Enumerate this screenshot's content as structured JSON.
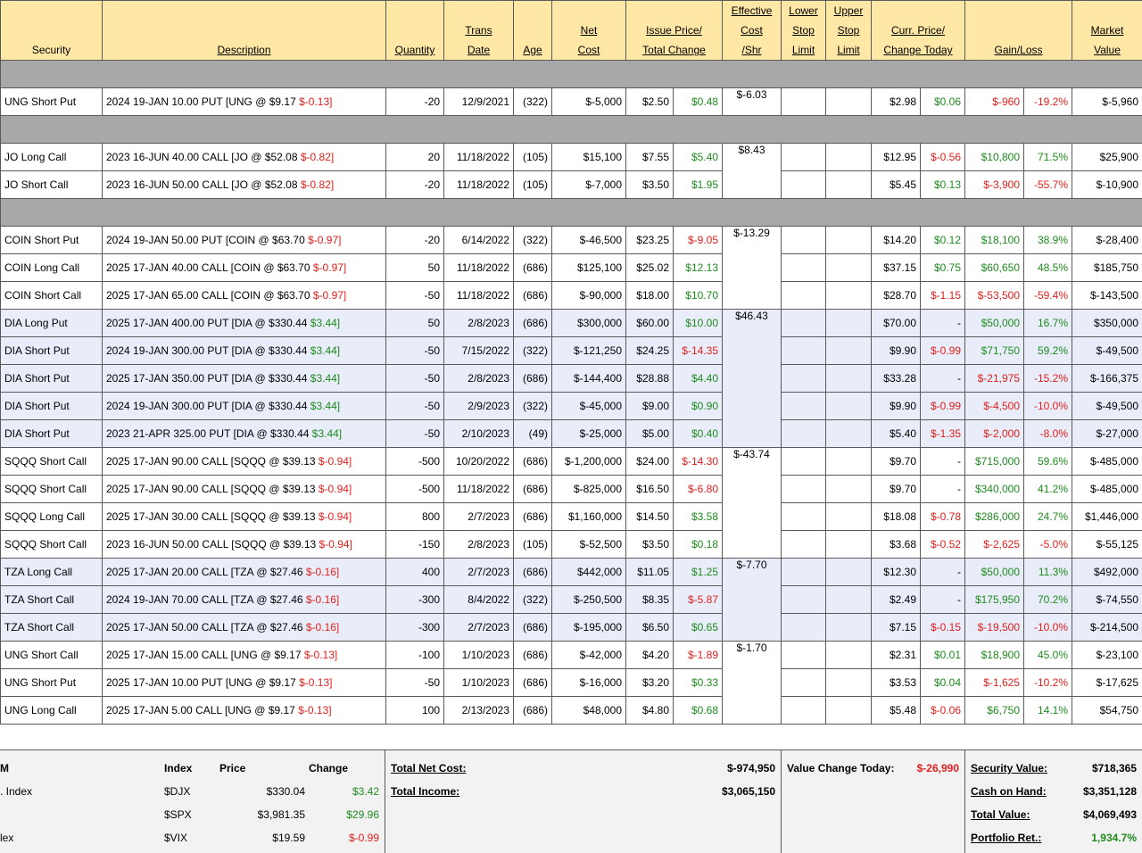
{
  "header": {
    "security": "Security",
    "description": "Description",
    "quantity": "Quantity",
    "trans_date_1": "Trans",
    "trans_date_2": "Date",
    "age": "Age",
    "net_cost_1": "Net",
    "net_cost_2": "Cost",
    "issue_price_1": "Issue Price/",
    "issue_price_2": "Total Change",
    "eff_cost_1": "Effective",
    "eff_cost_2": "Cost",
    "eff_cost_3": "/Shr",
    "lower_stop_1": "Lower",
    "lower_stop_2": "Stop",
    "lower_stop_3": "Limit",
    "upper_stop_1": "Upper",
    "upper_stop_2": "Stop",
    "upper_stop_3": "Limit",
    "curr_price_1": "Curr. Price/",
    "curr_price_2": "Change Today",
    "gain_loss": "Gain/Loss",
    "market_value_1": "Market",
    "market_value_2": "Value"
  },
  "rows": [
    {
      "sec": "UNG Short Put",
      "desc": "2024 19-JAN 10.00 PUT [UNG @ $9.17",
      "desc_chg": "$-0.13]",
      "desc_chg_neg": true,
      "qty": "-20",
      "date": "12/9/2021",
      "age": "(322)",
      "net": "$-5,000",
      "issue": "$2.50",
      "tchg": "$0.48",
      "tchg_neg": false,
      "ecost": "$-6.03",
      "curr": "$2.98",
      "today": "$0.06",
      "today_neg": false,
      "gain": "$-960",
      "gain_neg": true,
      "pct": "-19.2%",
      "pct_neg": true,
      "mv": "$-5,960",
      "blue": false
    },
    {
      "sec": "JO Long Call",
      "desc": "2023 16-JUN 40.00 CALL [JO @ $52.08",
      "desc_chg": "$-0.82]",
      "desc_chg_neg": true,
      "qty": "20",
      "date": "11/18/2022",
      "age": "(105)",
      "net": "$15,100",
      "issue": "$7.55",
      "tchg": "$5.40",
      "tchg_neg": false,
      "ecost": "$8.43",
      "curr": "$12.95",
      "today": "$-0.56",
      "today_neg": true,
      "gain": "$10,800",
      "gain_neg": false,
      "pct": "71.5%",
      "pct_neg": false,
      "mv": "$25,900",
      "blue": false
    },
    {
      "sec": "JO Short Call",
      "desc": "2023 16-JUN 50.00 CALL [JO @ $52.08",
      "desc_chg": "$-0.82]",
      "desc_chg_neg": true,
      "qty": "-20",
      "date": "11/18/2022",
      "age": "(105)",
      "net": "$-7,000",
      "issue": "$3.50",
      "tchg": "$1.95",
      "tchg_neg": false,
      "ecost": "",
      "curr": "$5.45",
      "today": "$0.13",
      "today_neg": false,
      "gain": "$-3,900",
      "gain_neg": true,
      "pct": "-55.7%",
      "pct_neg": true,
      "mv": "$-10,900",
      "blue": false
    },
    {
      "sec": "COIN Short Put",
      "desc": "2024 19-JAN 50.00 PUT [COIN @ $63.70",
      "desc_chg": "$-0.97]",
      "desc_chg_neg": true,
      "qty": "-20",
      "date": "6/14/2022",
      "age": "(322)",
      "net": "$-46,500",
      "issue": "$23.25",
      "tchg": "$-9.05",
      "tchg_neg": true,
      "ecost": "$-13.29",
      "curr": "$14.20",
      "today": "$0.12",
      "today_neg": false,
      "gain": "$18,100",
      "gain_neg": false,
      "pct": "38.9%",
      "pct_neg": false,
      "mv": "$-28,400",
      "blue": false
    },
    {
      "sec": "COIN Long Call",
      "desc": "2025 17-JAN 40.00 CALL [COIN @ $63.70",
      "desc_chg": "$-0.97]",
      "desc_chg_neg": true,
      "qty": "50",
      "date": "11/18/2022",
      "age": "(686)",
      "net": "$125,100",
      "issue": "$25.02",
      "tchg": "$12.13",
      "tchg_neg": false,
      "ecost": "",
      "curr": "$37.15",
      "today": "$0.75",
      "today_neg": false,
      "gain": "$60,650",
      "gain_neg": false,
      "pct": "48.5%",
      "pct_neg": false,
      "mv": "$185,750",
      "blue": false
    },
    {
      "sec": "COIN Short Call",
      "desc": "2025 17-JAN 65.00 CALL [COIN @ $63.70",
      "desc_chg": "$-0.97]",
      "desc_chg_neg": true,
      "qty": "-50",
      "date": "11/18/2022",
      "age": "(686)",
      "net": "$-90,000",
      "issue": "$18.00",
      "tchg": "$10.70",
      "tchg_neg": false,
      "ecost": "",
      "curr": "$28.70",
      "today": "$-1.15",
      "today_neg": true,
      "gain": "$-53,500",
      "gain_neg": true,
      "pct": "-59.4%",
      "pct_neg": true,
      "mv": "$-143,500",
      "blue": false
    },
    {
      "sec": "DIA Long Put",
      "desc": "2025 17-JAN 400.00 PUT [DIA @ $330.44",
      "desc_chg": "$3.44]",
      "desc_chg_neg": false,
      "qty": "50",
      "date": "2/8/2023",
      "age": "(686)",
      "net": "$300,000",
      "issue": "$60.00",
      "tchg": "$10.00",
      "tchg_neg": false,
      "ecost": "$46.43",
      "curr": "$70.00",
      "today": "-",
      "today_neg": false,
      "gain": "$50,000",
      "gain_neg": false,
      "pct": "16.7%",
      "pct_neg": false,
      "mv": "$350,000",
      "blue": true
    },
    {
      "sec": "DIA Short Put",
      "desc": "2024 19-JAN 300.00 PUT [DIA @ $330.44",
      "desc_chg": "$3.44]",
      "desc_chg_neg": false,
      "qty": "-50",
      "date": "7/15/2022",
      "age": "(322)",
      "net": "$-121,250",
      "issue": "$24.25",
      "tchg": "$-14.35",
      "tchg_neg": true,
      "ecost": "",
      "curr": "$9.90",
      "today": "$-0.99",
      "today_neg": true,
      "gain": "$71,750",
      "gain_neg": false,
      "pct": "59.2%",
      "pct_neg": false,
      "mv": "$-49,500",
      "blue": true
    },
    {
      "sec": "DIA Short Put",
      "desc": "2025 17-JAN 350.00 PUT [DIA @ $330.44",
      "desc_chg": "$3.44]",
      "desc_chg_neg": false,
      "qty": "-50",
      "date": "2/8/2023",
      "age": "(686)",
      "net": "$-144,400",
      "issue": "$28.88",
      "tchg": "$4.40",
      "tchg_neg": false,
      "ecost": "",
      "curr": "$33.28",
      "today": "-",
      "today_neg": false,
      "gain": "$-21,975",
      "gain_neg": true,
      "pct": "-15.2%",
      "pct_neg": true,
      "mv": "$-166,375",
      "blue": true
    },
    {
      "sec": "DIA Short Put",
      "desc": "2024 19-JAN 300.00 PUT [DIA @ $330.44",
      "desc_chg": "$3.44]",
      "desc_chg_neg": false,
      "qty": "-50",
      "date": "2/9/2023",
      "age": "(322)",
      "net": "$-45,000",
      "issue": "$9.00",
      "tchg": "$0.90",
      "tchg_neg": false,
      "ecost": "",
      "curr": "$9.90",
      "today": "$-0.99",
      "today_neg": true,
      "gain": "$-4,500",
      "gain_neg": true,
      "pct": "-10.0%",
      "pct_neg": true,
      "mv": "$-49,500",
      "blue": true
    },
    {
      "sec": "DIA Short Put",
      "desc": "2023 21-APR 325.00 PUT [DIA @ $330.44",
      "desc_chg": "$3.44]",
      "desc_chg_neg": false,
      "qty": "-50",
      "date": "2/10/2023",
      "age": "(49)",
      "net": "$-25,000",
      "issue": "$5.00",
      "tchg": "$0.40",
      "tchg_neg": false,
      "ecost": "",
      "curr": "$5.40",
      "today": "$-1.35",
      "today_neg": true,
      "gain": "$-2,000",
      "gain_neg": true,
      "pct": "-8.0%",
      "pct_neg": true,
      "mv": "$-27,000",
      "blue": true
    },
    {
      "sec": "SQQQ Short Call",
      "desc": "2025 17-JAN 90.00 CALL [SQQQ @ $39.13",
      "desc_chg": "$-0.94]",
      "desc_chg_neg": true,
      "qty": "-500",
      "date": "10/20/2022",
      "age": "(686)",
      "net": "$-1,200,000",
      "issue": "$24.00",
      "tchg": "$-14.30",
      "tchg_neg": true,
      "ecost": "$-43.74",
      "curr": "$9.70",
      "today": "-",
      "today_neg": false,
      "gain": "$715,000",
      "gain_neg": false,
      "pct": "59.6%",
      "pct_neg": false,
      "mv": "$-485,000",
      "blue": false
    },
    {
      "sec": "SQQQ Short Call",
      "desc": "2025 17-JAN 90.00 CALL [SQQQ @ $39.13",
      "desc_chg": "$-0.94]",
      "desc_chg_neg": true,
      "qty": "-500",
      "date": "11/18/2022",
      "age": "(686)",
      "net": "$-825,000",
      "issue": "$16.50",
      "tchg": "$-6.80",
      "tchg_neg": true,
      "ecost": "",
      "curr": "$9.70",
      "today": "-",
      "today_neg": false,
      "gain": "$340,000",
      "gain_neg": false,
      "pct": "41.2%",
      "pct_neg": false,
      "mv": "$-485,000",
      "blue": false
    },
    {
      "sec": "SQQQ Long Call",
      "desc": "2025 17-JAN 30.00 CALL [SQQQ @ $39.13",
      "desc_chg": "$-0.94]",
      "desc_chg_neg": true,
      "qty": "800",
      "date": "2/7/2023",
      "age": "(686)",
      "net": "$1,160,000",
      "issue": "$14.50",
      "tchg": "$3.58",
      "tchg_neg": false,
      "ecost": "",
      "curr": "$18.08",
      "today": "$-0.78",
      "today_neg": true,
      "gain": "$286,000",
      "gain_neg": false,
      "pct": "24.7%",
      "pct_neg": false,
      "mv": "$1,446,000",
      "blue": false
    },
    {
      "sec": "SQQQ Short Call",
      "desc": "2023 16-JUN 50.00 CALL [SQQQ @ $39.13",
      "desc_chg": "$-0.94]",
      "desc_chg_neg": true,
      "qty": "-150",
      "date": "2/8/2023",
      "age": "(105)",
      "net": "$-52,500",
      "issue": "$3.50",
      "tchg": "$0.18",
      "tchg_neg": false,
      "ecost": "",
      "curr": "$3.68",
      "today": "$-0.52",
      "today_neg": true,
      "gain": "$-2,625",
      "gain_neg": true,
      "pct": "-5.0%",
      "pct_neg": true,
      "mv": "$-55,125",
      "blue": false
    },
    {
      "sec": "TZA Long Call",
      "desc": "2025 17-JAN 20.00 CALL [TZA @ $27.46",
      "desc_chg": "$-0.16]",
      "desc_chg_neg": true,
      "qty": "400",
      "date": "2/7/2023",
      "age": "(686)",
      "net": "$442,000",
      "issue": "$11.05",
      "tchg": "$1.25",
      "tchg_neg": false,
      "ecost": "$-7.70",
      "curr": "$12.30",
      "today": "-",
      "today_neg": false,
      "gain": "$50,000",
      "gain_neg": false,
      "pct": "11.3%",
      "pct_neg": false,
      "mv": "$492,000",
      "blue": true
    },
    {
      "sec": "TZA Short Call",
      "desc": "2024 19-JAN 70.00 CALL [TZA @ $27.46",
      "desc_chg": "$-0.16]",
      "desc_chg_neg": true,
      "qty": "-300",
      "date": "8/4/2022",
      "age": "(322)",
      "net": "$-250,500",
      "issue": "$8.35",
      "tchg": "$-5.87",
      "tchg_neg": true,
      "ecost": "",
      "curr": "$2.49",
      "today": "-",
      "today_neg": false,
      "gain": "$175,950",
      "gain_neg": false,
      "pct": "70.2%",
      "pct_neg": false,
      "mv": "$-74,550",
      "blue": true
    },
    {
      "sec": "TZA Short Call",
      "desc": "2025 17-JAN 50.00 CALL [TZA @ $27.46",
      "desc_chg": "$-0.16]",
      "desc_chg_neg": true,
      "qty": "-300",
      "date": "2/7/2023",
      "age": "(686)",
      "net": "$-195,000",
      "issue": "$6.50",
      "tchg": "$0.65",
      "tchg_neg": false,
      "ecost": "",
      "curr": "$7.15",
      "today": "$-0.15",
      "today_neg": true,
      "gain": "$-19,500",
      "gain_neg": true,
      "pct": "-10.0%",
      "pct_neg": true,
      "mv": "$-214,500",
      "blue": true
    },
    {
      "sec": "UNG Short Call",
      "desc": "2025 17-JAN 15.00 CALL [UNG @ $9.17",
      "desc_chg": "$-0.13]",
      "desc_chg_neg": true,
      "qty": "-100",
      "date": "1/10/2023",
      "age": "(686)",
      "net": "$-42,000",
      "issue": "$4.20",
      "tchg": "$-1.89",
      "tchg_neg": true,
      "ecost": "$-1.70",
      "curr": "$2.31",
      "today": "$0.01",
      "today_neg": false,
      "gain": "$18,900",
      "gain_neg": false,
      "pct": "45.0%",
      "pct_neg": false,
      "mv": "$-23,100",
      "blue": false
    },
    {
      "sec": "UNG Short Put",
      "desc": "2025 17-JAN 10.00 PUT [UNG @ $9.17",
      "desc_chg": "$-0.13]",
      "desc_chg_neg": true,
      "qty": "-50",
      "date": "1/10/2023",
      "age": "(686)",
      "net": "$-16,000",
      "issue": "$3.20",
      "tchg": "$0.33",
      "tchg_neg": false,
      "ecost": "",
      "curr": "$3.53",
      "today": "$0.04",
      "today_neg": false,
      "gain": "$-1,625",
      "gain_neg": true,
      "pct": "-10.2%",
      "pct_neg": true,
      "mv": "$-17,625",
      "blue": false
    },
    {
      "sec": "UNG Long Call",
      "desc": "2025 17-JAN 5.00 CALL [UNG @ $9.17",
      "desc_chg": "$-0.13]",
      "desc_chg_neg": true,
      "qty": "100",
      "date": "2/13/2023",
      "age": "(686)",
      "net": "$48,000",
      "issue": "$4.80",
      "tchg": "$0.68",
      "tchg_neg": false,
      "ecost": "",
      "curr": "$5.48",
      "today": "$-0.06",
      "today_neg": true,
      "gain": "$6,750",
      "gain_neg": false,
      "pct": "14.1%",
      "pct_neg": false,
      "mv": "$54,750",
      "blue": false
    }
  ],
  "layout_groups": {
    "sep_before": [
      0,
      1,
      3
    ],
    "ecost_spans": [
      [
        0,
        1
      ],
      [
        1,
        2
      ],
      [
        3,
        3
      ],
      [
        6,
        5
      ],
      [
        11,
        4
      ],
      [
        15,
        3
      ],
      [
        18,
        3
      ]
    ]
  },
  "footer": {
    "index_table": {
      "col_m": "M",
      "col_index": "Index",
      "col_price": "Price",
      "col_change": "Change",
      "rows": [
        {
          "name": ". Index",
          "sym": "$DJX",
          "price": "$330.04",
          "chg": "$3.42",
          "neg": false
        },
        {
          "name": "",
          "sym": "$SPX",
          "price": "$3,981.35",
          "chg": "$29.96",
          "neg": false
        },
        {
          "name": "lex",
          "sym": "$VIX",
          "price": "$19.59",
          "chg": "$-0.99",
          "neg": true
        }
      ]
    },
    "totals": {
      "net_cost_label": "Total Net Cost:",
      "net_cost": "$-974,950",
      "income_label": "Total Income:",
      "income": "$3,065,150"
    },
    "value_change": {
      "label": "Value Change Today:",
      "value": "$-26,990"
    },
    "portfolio": {
      "security_label": "Security Value:",
      "security": "$718,365",
      "cash_label": "Cash on Hand:",
      "cash": "$3,351,128",
      "total_label": "Total Value:",
      "total": "$4,069,493",
      "ret_label": "Portfolio Ret.:",
      "ret": "1,934.7%"
    }
  },
  "colors": {
    "header_bg": "#ffe7a6",
    "separator": "#a8a8a8",
    "highlight": "#e8edf9",
    "positive": "#1f8a1f",
    "negative": "#e0201e"
  }
}
